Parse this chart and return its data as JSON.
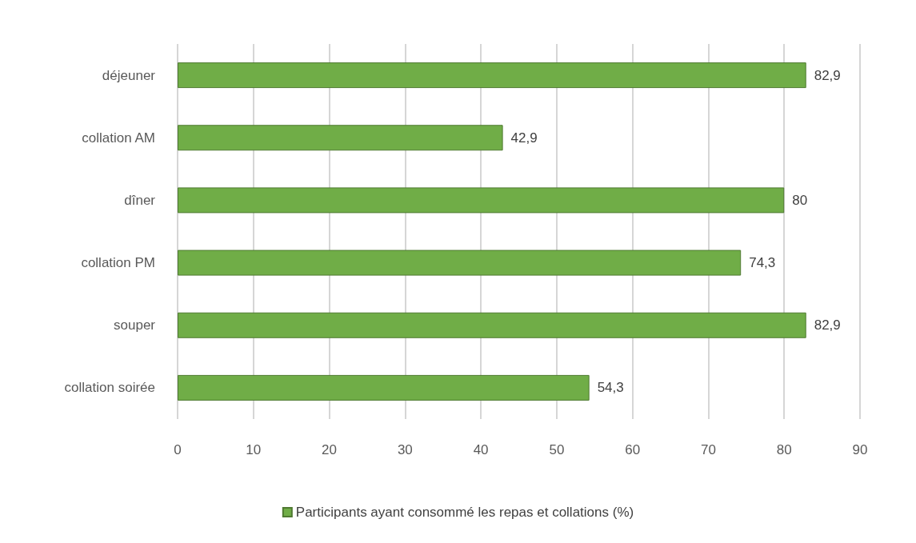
{
  "chart_data": {
    "type": "bar",
    "orientation": "horizontal",
    "categories": [
      "déjeuner",
      "collation AM",
      "dîner",
      "collation PM",
      "souper",
      "collation soirée"
    ],
    "series": [
      {
        "name": "Participants ayant consommé les repas et collations (%)",
        "color": "#70ad47",
        "values": [
          82.9,
          42.9,
          80,
          74.3,
          82.9,
          54.3
        ],
        "value_labels": [
          "82,9",
          "42,9",
          "80",
          "74,3",
          "82,9",
          "54,3"
        ]
      }
    ],
    "xlim": [
      0,
      90
    ],
    "xticks": [
      0,
      10,
      20,
      30,
      40,
      50,
      60,
      70,
      80,
      90
    ],
    "grid": "x",
    "legend": "bottom"
  }
}
